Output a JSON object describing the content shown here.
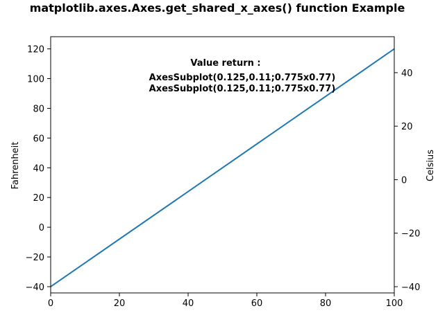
{
  "chart_data": {
    "type": "line",
    "title": "matplotlib.axes.Axes.get_shared_x_axes() function Example",
    "xlim": [
      0,
      100
    ],
    "ylim": [
      -44.2,
      128.2
    ],
    "y2lim": [
      -42.33,
      53.44
    ],
    "x_ticks": [
      0,
      20,
      40,
      60,
      80,
      100
    ],
    "y_ticks": [
      -40,
      -20,
      0,
      20,
      40,
      60,
      80,
      100,
      120
    ],
    "y2_ticks": [
      -40,
      -20,
      0,
      20,
      40
    ],
    "x_tick_labels": [
      "0",
      "20",
      "40",
      "60",
      "80",
      "100"
    ],
    "y_tick_labels": [
      "−40",
      "−20",
      "0",
      "20",
      "40",
      "60",
      "80",
      "100",
      "120"
    ],
    "y2_tick_labels": [
      "−40",
      "−20",
      "0",
      "20",
      "40"
    ],
    "ylabel": "Fahrenheit",
    "y2label": "Celsius",
    "series": [
      {
        "x": [
          0,
          100
        ],
        "y": [
          -40,
          120
        ],
        "color": "#1f77b4"
      }
    ],
    "annotation": {
      "heading": "Value return :",
      "lines": [
        "AxesSubplot(0.125,0.11;0.775x0.77)",
        "AxesSubplot(0.125,0.11;0.775x0.77)"
      ]
    }
  }
}
